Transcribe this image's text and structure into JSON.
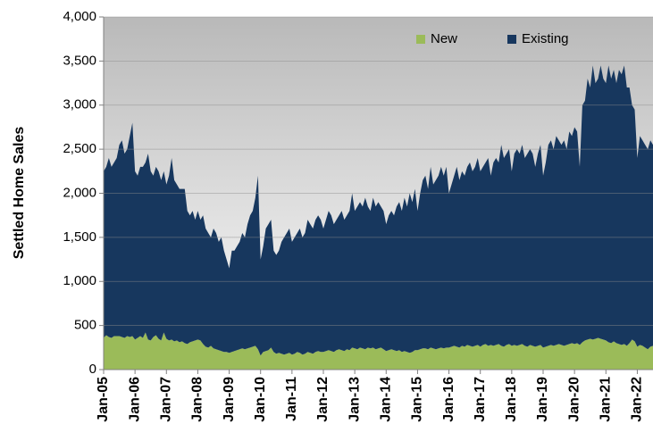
{
  "chart_data": {
    "type": "stacked-area",
    "y_label": "Settled Home Sales",
    "categories": [
      "Jan-05",
      null,
      null,
      null,
      null,
      null,
      null,
      null,
      null,
      null,
      null,
      null,
      "Jan-06",
      null,
      null,
      null,
      null,
      null,
      null,
      null,
      null,
      null,
      null,
      null,
      "Jan-07",
      null,
      null,
      null,
      null,
      null,
      null,
      null,
      null,
      null,
      null,
      null,
      "Jan-08",
      null,
      null,
      null,
      null,
      null,
      null,
      null,
      null,
      null,
      null,
      null,
      "Jan-09",
      null,
      null,
      null,
      null,
      null,
      null,
      null,
      null,
      null,
      null,
      null,
      "Jan-10",
      null,
      null,
      null,
      null,
      null,
      null,
      null,
      null,
      null,
      null,
      null,
      "Jan-11",
      null,
      null,
      null,
      null,
      null,
      null,
      null,
      null,
      null,
      null,
      null,
      "Jan-12",
      null,
      null,
      null,
      null,
      null,
      null,
      null,
      null,
      null,
      null,
      null,
      "Jan-13",
      null,
      null,
      null,
      null,
      null,
      null,
      null,
      null,
      null,
      null,
      null,
      "Jan-14",
      null,
      null,
      null,
      null,
      null,
      null,
      null,
      null,
      null,
      null,
      null,
      "Jan-15",
      null,
      null,
      null,
      null,
      null,
      null,
      null,
      null,
      null,
      null,
      null,
      "Jan-16",
      null,
      null,
      null,
      null,
      null,
      null,
      null,
      null,
      null,
      null,
      null,
      "Jan-17",
      null,
      null,
      null,
      null,
      null,
      null,
      null,
      null,
      null,
      null,
      null,
      "Jan-18",
      null,
      null,
      null,
      null,
      null,
      null,
      null,
      null,
      null,
      null,
      null,
      "Jan-19",
      null,
      null,
      null,
      null,
      null,
      null,
      null,
      null,
      null,
      null,
      null,
      "Jan-20",
      null,
      null,
      null,
      null,
      null,
      null,
      null,
      null,
      null,
      null,
      null,
      "Jan-21",
      null,
      null,
      null,
      null,
      null,
      null,
      null,
      null,
      null,
      null,
      null,
      "Jan-22",
      null,
      null,
      null,
      null,
      null,
      null
    ],
    "series": [
      {
        "name": "New",
        "color": "#9bbb59",
        "values": [
          360,
          390,
          370,
          360,
          380,
          380,
          380,
          370,
          360,
          380,
          370,
          380,
          340,
          360,
          380,
          360,
          420,
          340,
          330,
          370,
          390,
          350,
          330,
          420,
          350,
          330,
          340,
          320,
          330,
          310,
          320,
          300,
          290,
          310,
          320,
          330,
          340,
          330,
          290,
          260,
          250,
          270,
          240,
          230,
          220,
          210,
          200,
          200,
          190,
          200,
          210,
          220,
          230,
          240,
          230,
          240,
          250,
          260,
          270,
          230,
          160,
          200,
          210,
          220,
          250,
          200,
          180,
          190,
          180,
          170,
          180,
          190,
          170,
          180,
          200,
          190,
          170,
          180,
          200,
          190,
          180,
          200,
          210,
          200,
          200,
          210,
          220,
          210,
          200,
          220,
          230,
          220,
          210,
          230,
          220,
          250,
          240,
          230,
          250,
          240,
          230,
          250,
          240,
          250,
          230,
          240,
          250,
          230,
          210,
          220,
          230,
          220,
          210,
          220,
          200,
          210,
          200,
          190,
          200,
          220,
          220,
          230,
          240,
          240,
          230,
          250,
          240,
          230,
          240,
          250,
          240,
          250,
          250,
          260,
          270,
          260,
          250,
          270,
          260,
          280,
          270,
          260,
          270,
          280,
          260,
          280,
          290,
          270,
          280,
          270,
          280,
          290,
          270,
          260,
          280,
          290,
          270,
          280,
          270,
          280,
          290,
          270,
          260,
          280,
          270,
          260,
          270,
          280,
          250,
          260,
          270,
          280,
          270,
          280,
          290,
          280,
          270,
          280,
          290,
          300,
          290,
          300,
          280,
          310,
          330,
          340,
          350,
          340,
          350,
          360,
          350,
          340,
          330,
          310,
          300,
          320,
          300,
          290,
          280,
          290,
          270,
          300,
          340,
          320,
          260,
          280,
          270,
          250,
          230,
          260,
          270
        ]
      },
      {
        "name": "Existing",
        "color": "#17375e",
        "values": [
          1890,
          1910,
          2030,
          1940,
          1970,
          2020,
          2170,
          2230,
          2090,
          2120,
          2280,
          2420,
          1910,
          1840,
          1920,
          1940,
          1930,
          2110,
          1920,
          1830,
          1910,
          1900,
          1820,
          1830,
          1750,
          1870,
          2060,
          1830,
          1770,
          1740,
          1730,
          1750,
          1510,
          1440,
          1480,
          1370,
          1460,
          1370,
          1460,
          1340,
          1300,
          1230,
          1360,
          1320,
          1230,
          1290,
          1150,
          1050,
          960,
          1150,
          1140,
          1180,
          1220,
          1310,
          1270,
          1410,
          1500,
          1540,
          1680,
          1970,
          1090,
          1200,
          1390,
          1430,
          1450,
          1150,
          1120,
          1160,
          1270,
          1330,
          1370,
          1410,
          1280,
          1320,
          1350,
          1410,
          1330,
          1370,
          1500,
          1460,
          1420,
          1500,
          1540,
          1500,
          1400,
          1490,
          1580,
          1540,
          1450,
          1480,
          1520,
          1580,
          1490,
          1520,
          1580,
          1750,
          1560,
          1620,
          1650,
          1610,
          1720,
          1600,
          1560,
          1700,
          1620,
          1660,
          1600,
          1570,
          1440,
          1530,
          1570,
          1530,
          1640,
          1680,
          1600,
          1740,
          1650,
          1810,
          1700,
          1830,
          1580,
          1770,
          1910,
          1960,
          1820,
          2050,
          1860,
          1920,
          1960,
          2050,
          1960,
          2050,
          1750,
          1840,
          1930,
          2040,
          1900,
          1980,
          1940,
          2020,
          2080,
          1990,
          2030,
          2120,
          1990,
          2020,
          2060,
          2130,
          1920,
          2080,
          2120,
          2060,
          2280,
          2140,
          2170,
          2210,
          1980,
          2170,
          2230,
          2170,
          2260,
          2130,
          2190,
          2220,
          2180,
          2040,
          2180,
          2270,
          1950,
          2090,
          2280,
          2320,
          2230,
          2370,
          2310,
          2270,
          2330,
          2220,
          2410,
          2350,
          2460,
          2400,
          2020,
          2690,
          2720,
          2960,
          2850,
          3110,
          2900,
          2940,
          3100,
          2960,
          2920,
          3140,
          3000,
          3080,
          2950,
          3110,
          3070,
          3160,
          2930,
          2900,
          2660,
          2630,
          2140,
          2370,
          2330,
          2300,
          2270,
          2340,
          2280
        ]
      }
    ],
    "ylim": [
      0,
      4000
    ],
    "yticks": [
      0,
      500,
      {
        "value": 1000,
        "label": "1,000"
      },
      {
        "value": 1500,
        "label": "1,500"
      },
      {
        "value": 2000,
        "label": "2,000"
      },
      {
        "value": 2500,
        "label": "2,500"
      },
      {
        "value": 3000,
        "label": "3,000"
      },
      {
        "value": 3500,
        "label": "3,500"
      },
      {
        "value": 4000,
        "label": "4,000"
      }
    ],
    "grid": true,
    "legend": "top-right"
  }
}
